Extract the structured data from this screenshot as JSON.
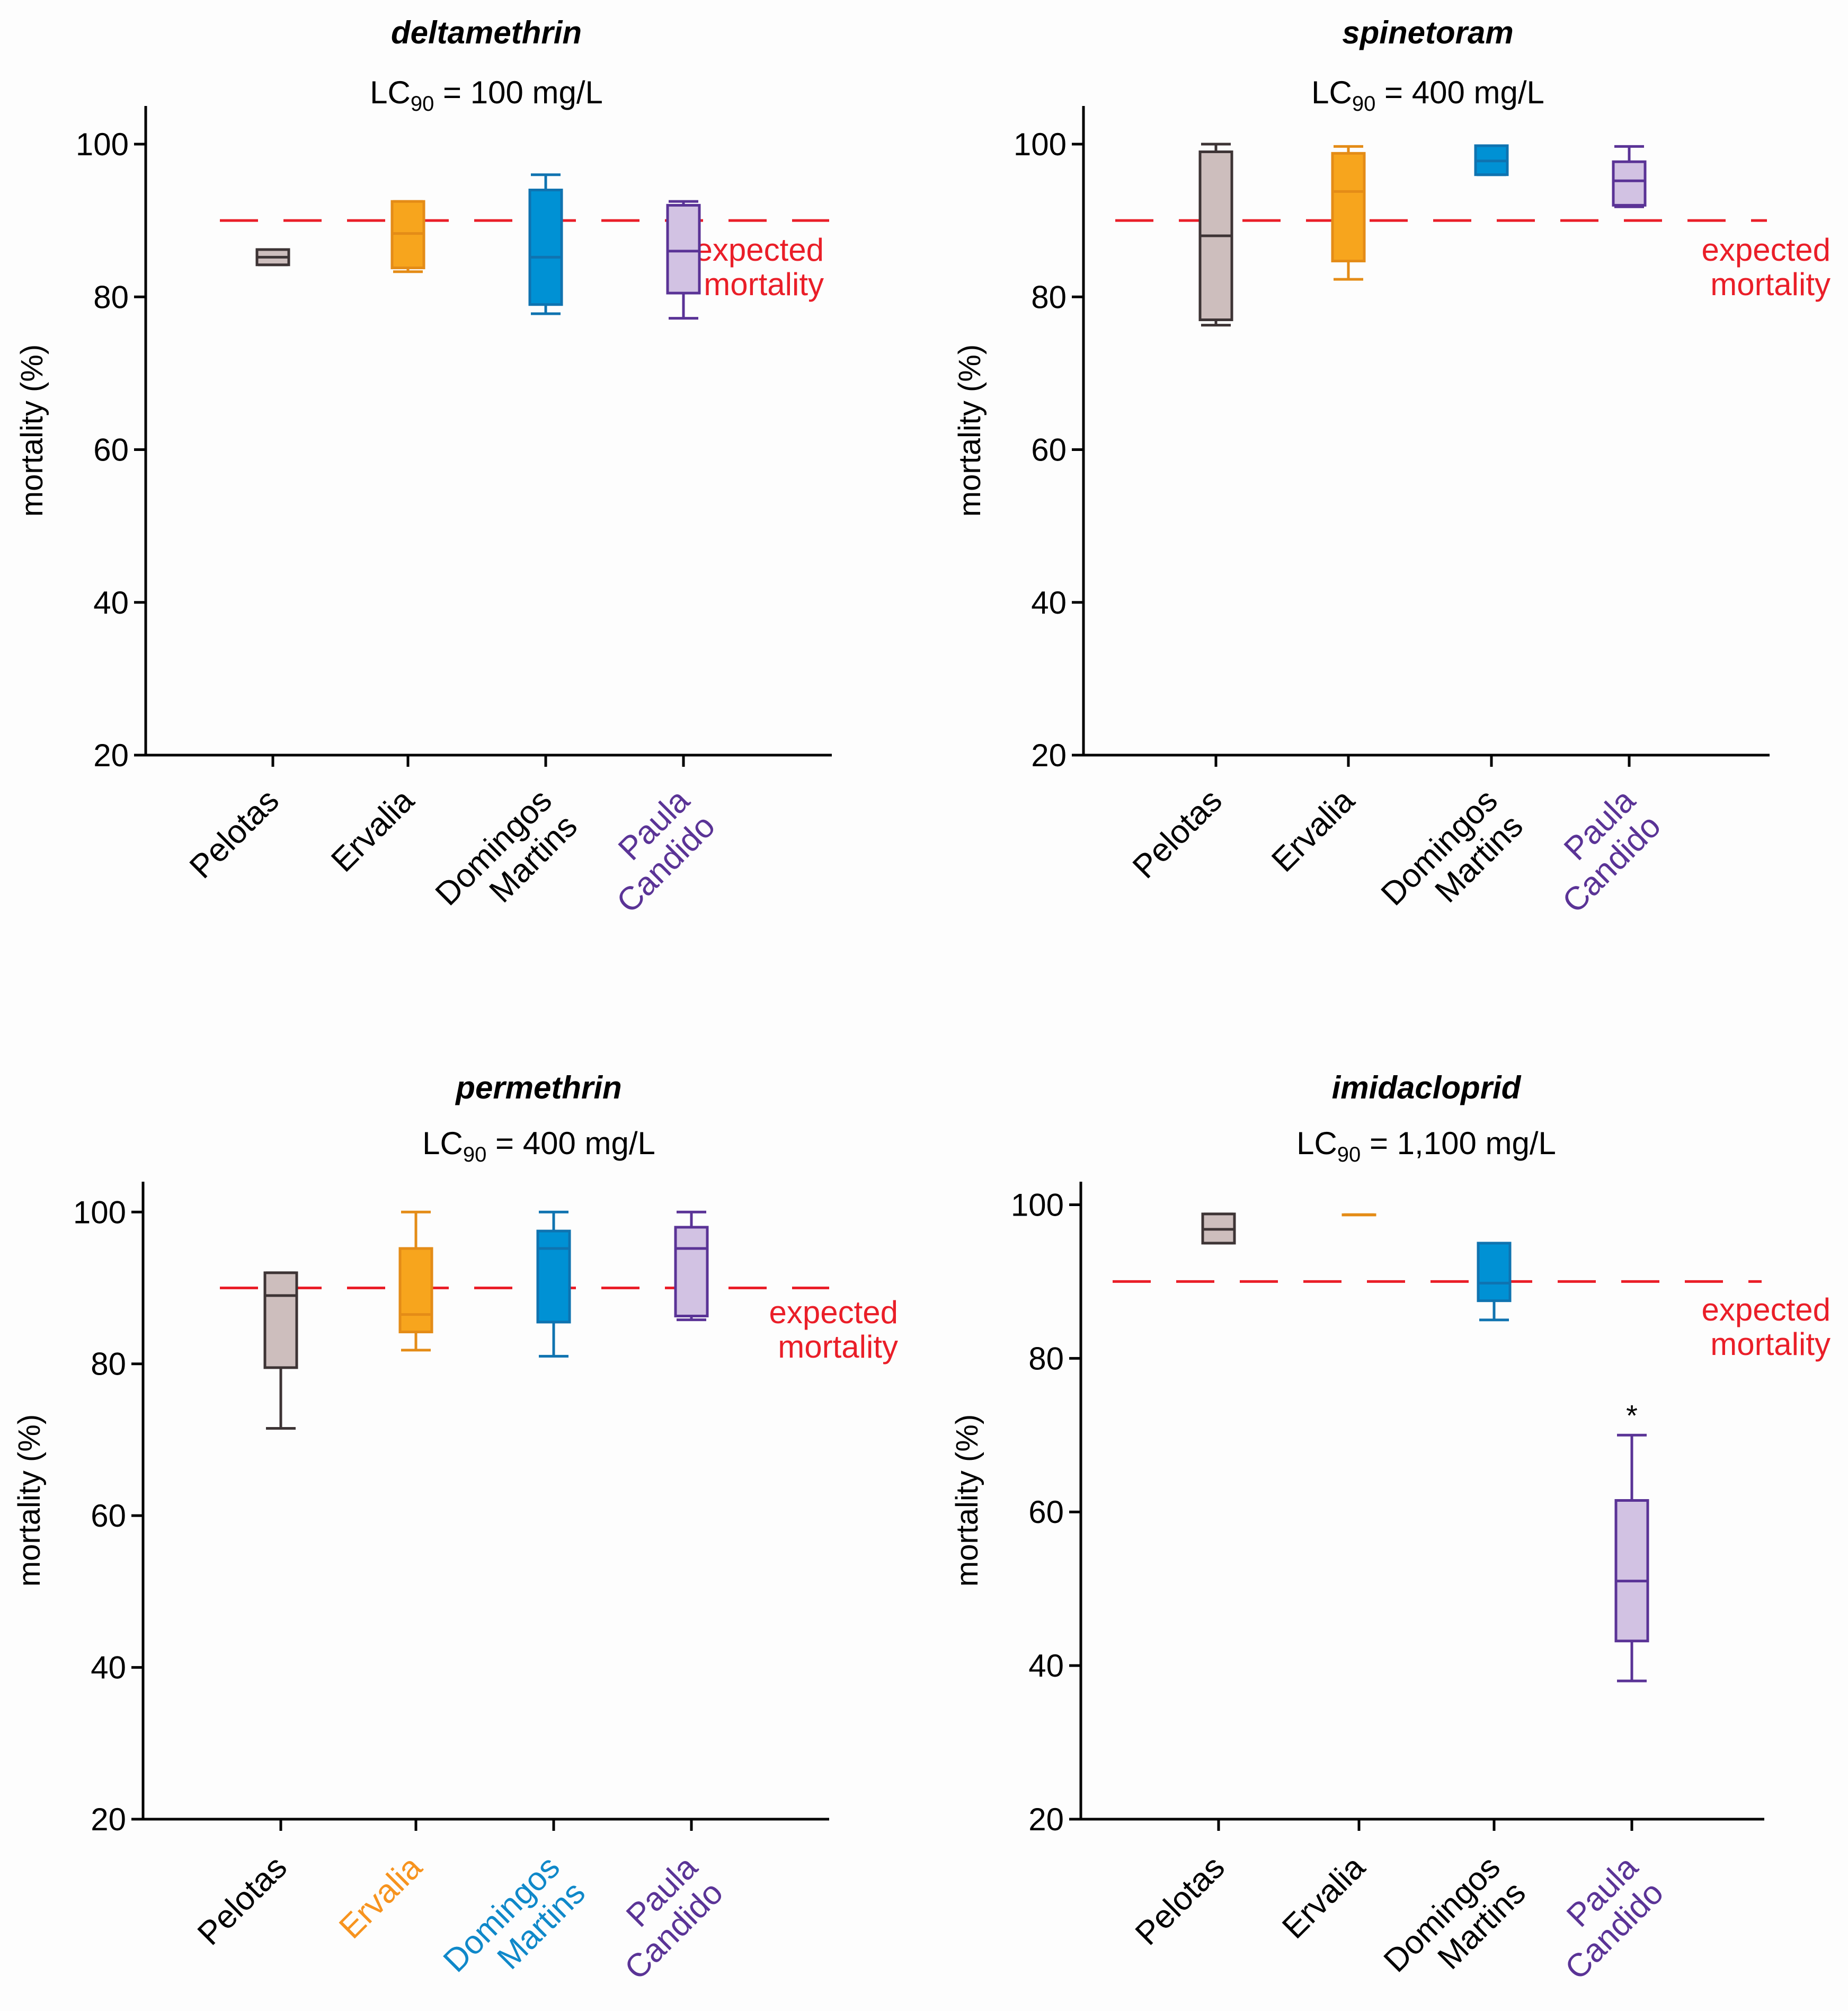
{
  "colors": {
    "Pelotas": {
      "fill": "#cdbebd",
      "stroke": "#3d3435"
    },
    "Ervalia": {
      "fill": "#f7a51d",
      "stroke": "#e48c17"
    },
    "Domingos Martins": {
      "fill": "#0091d4",
      "stroke": "#0f73b0"
    },
    "Paula Candido": {
      "fill": "#d2c2e3",
      "stroke": "#5a3396"
    },
    "expected": "#ea1e28",
    "axis": "#000000"
  },
  "chart_data": [
    {
      "type": "boxplot",
      "title": "deltamethrin",
      "subtitle": {
        "prefix": "LC",
        "subscript": "90",
        "suffix": " = 100 mg/L"
      },
      "ylabel": "mortality (%)",
      "ylim": [
        20,
        105
      ],
      "yticks": [
        20,
        40,
        60,
        80,
        100
      ],
      "expected_mortality": 90,
      "expected_label": [
        "expected",
        "mortality"
      ],
      "categories": [
        {
          "lines": [
            "Pelotas"
          ],
          "label_color": "#000000"
        },
        {
          "lines": [
            "Ervalia"
          ],
          "label_color": "#000000"
        },
        {
          "lines": [
            "Domingos",
            "Martins"
          ],
          "label_color": "#000000"
        },
        {
          "lines": [
            "Paula",
            "Candido"
          ],
          "label_color": "#5a3396"
        }
      ],
      "series": [
        {
          "name": "Pelotas",
          "min": 84.2,
          "q1": 84.2,
          "median": 85.2,
          "q3": 86.2,
          "max": 86.2
        },
        {
          "name": "Ervalia",
          "min": 83.3,
          "q1": 83.8,
          "median": 88.3,
          "q3": 92.5,
          "max": 92.5
        },
        {
          "name": "Domingos Martins",
          "min": 77.8,
          "q1": 79.0,
          "median": 85.2,
          "q3": 94.0,
          "max": 96.0
        },
        {
          "name": "Paula Candido",
          "min": 77.2,
          "q1": 80.5,
          "median": 86.0,
          "q3": 92.0,
          "max": 92.5
        }
      ],
      "annotations": []
    },
    {
      "type": "boxplot",
      "title": "spinetoram",
      "subtitle": {
        "prefix": "LC",
        "subscript": "90",
        "suffix": " = 400 mg/L"
      },
      "ylabel": "mortality (%)",
      "ylim": [
        20,
        105
      ],
      "yticks": [
        20,
        40,
        60,
        80,
        100
      ],
      "expected_mortality": 90,
      "expected_label": [
        "expected",
        "mortality"
      ],
      "categories": [
        {
          "lines": [
            "Pelotas"
          ],
          "label_color": "#000000"
        },
        {
          "lines": [
            "Ervalia"
          ],
          "label_color": "#000000"
        },
        {
          "lines": [
            "Domingos",
            "Martins"
          ],
          "label_color": "#000000"
        },
        {
          "lines": [
            "Paula",
            "Candido"
          ],
          "label_color": "#5a3396"
        }
      ],
      "series": [
        {
          "name": "Pelotas",
          "min": 76.3,
          "q1": 77.0,
          "median": 88.0,
          "q3": 99.0,
          "max": 100.0
        },
        {
          "name": "Ervalia",
          "min": 82.3,
          "q1": 84.7,
          "median": 93.8,
          "q3": 98.8,
          "max": 99.7
        },
        {
          "name": "Domingos Martins",
          "min": 96.0,
          "q1": 96.0,
          "median": 97.8,
          "q3": 99.8,
          "max": 99.8
        },
        {
          "name": "Paula Candido",
          "min": 91.8,
          "q1": 92.0,
          "median": 95.2,
          "q3": 97.7,
          "max": 99.7
        }
      ],
      "annotations": []
    },
    {
      "type": "boxplot",
      "title": "permethrin",
      "subtitle": {
        "prefix": "LC",
        "subscript": "90",
        "suffix": " = 400 mg/L"
      },
      "ylabel": "mortality (%)",
      "ylim": [
        20,
        104
      ],
      "yticks": [
        20,
        40,
        60,
        80,
        100
      ],
      "expected_mortality": 90,
      "expected_label": [
        "expected",
        "mortality"
      ],
      "categories": [
        {
          "lines": [
            "Pelotas"
          ],
          "label_color": "#000000"
        },
        {
          "lines": [
            "Ervalia"
          ],
          "label_color": "#f7931e"
        },
        {
          "lines": [
            "Domingos",
            "Martins"
          ],
          "label_color": "#0f88c9"
        },
        {
          "lines": [
            "Paula",
            "Candido"
          ],
          "label_color": "#5a3396"
        }
      ],
      "series": [
        {
          "name": "Pelotas",
          "min": 71.5,
          "q1": 79.5,
          "median": 89.0,
          "q3": 92.0,
          "max": 92.0
        },
        {
          "name": "Ervalia",
          "min": 81.8,
          "q1": 84.2,
          "median": 86.5,
          "q3": 95.2,
          "max": 100.0
        },
        {
          "name": "Domingos Martins",
          "min": 81.0,
          "q1": 85.5,
          "median": 95.2,
          "q3": 97.5,
          "max": 100.0
        },
        {
          "name": "Paula Candido",
          "min": 85.8,
          "q1": 86.3,
          "median": 95.2,
          "q3": 98.0,
          "max": 100.0
        }
      ],
      "annotations": []
    },
    {
      "type": "boxplot",
      "title": "imidacloprid",
      "subtitle": {
        "prefix": "LC",
        "subscript": "90",
        "suffix": " = 1,100 mg/L"
      },
      "ylabel": "mortality (%)",
      "ylim": [
        20,
        103
      ],
      "yticks": [
        20,
        40,
        60,
        80,
        100
      ],
      "expected_mortality": 90,
      "expected_label": [
        "expected",
        "mortality"
      ],
      "categories": [
        {
          "lines": [
            "Pelotas"
          ],
          "label_color": "#000000"
        },
        {
          "lines": [
            "Ervalia"
          ],
          "label_color": "#000000"
        },
        {
          "lines": [
            "Domingos",
            "Martins"
          ],
          "label_color": "#000000"
        },
        {
          "lines": [
            "Paula",
            "Candido"
          ],
          "label_color": "#5a3396"
        }
      ],
      "series": [
        {
          "name": "Pelotas",
          "min": 95.0,
          "q1": 95.0,
          "median": 96.8,
          "q3": 98.8,
          "max": 98.8
        },
        {
          "name": "Ervalia",
          "min": 98.7,
          "q1": 98.7,
          "median": 98.7,
          "q3": 98.7,
          "max": 98.7
        },
        {
          "name": "Domingos Martins",
          "min": 85.0,
          "q1": 87.5,
          "median": 89.8,
          "q3": 95.0,
          "max": 95.0
        },
        {
          "name": "Paula Candido",
          "min": 38.0,
          "q1": 43.2,
          "median": 51.0,
          "q3": 61.5,
          "max": 70.0
        }
      ],
      "annotations": [
        {
          "category": "Paula Candido",
          "text": "*"
        }
      ]
    }
  ]
}
